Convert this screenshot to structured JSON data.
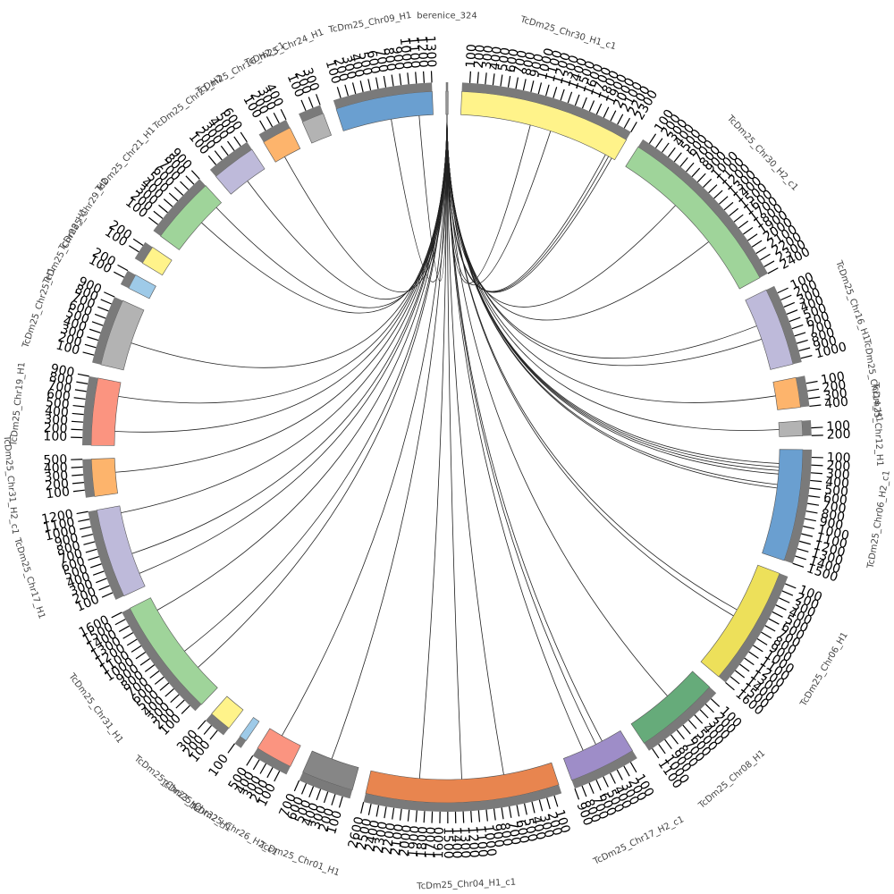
{
  "chart_data": {
    "type": "chord",
    "segments": [
      {
        "name": "berenice_324",
        "color": "#999999",
        "length": 30,
        "ticks": []
      },
      {
        "name": "TcDm25_Chr30_H1_c1",
        "color": "#fff38a",
        "length": 2300,
        "ticks": [
          100,
          200,
          300,
          400,
          500,
          600,
          700,
          800,
          900,
          1000,
          1100,
          1200,
          1300,
          1400,
          1500,
          1600,
          1700,
          1800,
          1900,
          2000,
          2100,
          2200,
          2300
        ]
      },
      {
        "name": "TcDm25_Chr30_H2_c1",
        "color": "#9fd49a",
        "length": 2400,
        "ticks": [
          100,
          200,
          300,
          400,
          500,
          600,
          700,
          800,
          900,
          1000,
          1100,
          1200,
          1300,
          1400,
          1500,
          1600,
          1700,
          1800,
          1900,
          2000,
          2100,
          2200,
          2300,
          2400
        ]
      },
      {
        "name": "TcDm25_Chr16_H1",
        "color": "#bebada",
        "length": 1050,
        "ticks": [
          100,
          200,
          300,
          400,
          500,
          600,
          700,
          800,
          900,
          1000
        ]
      },
      {
        "name": "TcDm25_Chr14_H1",
        "color": "#fdb46c",
        "length": 400,
        "ticks": [
          100,
          200,
          300,
          400
        ]
      },
      {
        "name": "TcDm25_Chr12_H1",
        "color": "#b3b3b3",
        "length": 200,
        "ticks": [
          100,
          200
        ]
      },
      {
        "name": "TcDm25_Chr06_H2_c1",
        "color": "#6a9fd0",
        "length": 1500,
        "ticks": [
          100,
          200,
          300,
          400,
          500,
          600,
          700,
          800,
          900,
          1000,
          1100,
          1200,
          1300,
          1400,
          1500
        ]
      },
      {
        "name": "TcDm25_Chr06_H1",
        "color": "#ede05a",
        "length": 1600,
        "ticks": [
          100,
          200,
          300,
          400,
          500,
          600,
          700,
          800,
          900,
          1000,
          1100,
          1200,
          1300,
          1400,
          1500,
          1600
        ]
      },
      {
        "name": "TcDm25_Chr08_H1",
        "color": "#66ab7a",
        "length": 1150,
        "ticks": [
          100,
          200,
          300,
          400,
          500,
          600,
          700,
          800,
          900,
          1000,
          1100
        ]
      },
      {
        "name": "TcDm25_Chr17_H2_c1",
        "color": "#9e8dc8",
        "length": 900,
        "ticks": [
          100,
          200,
          300,
          400,
          500,
          600,
          700,
          800,
          900
        ]
      },
      {
        "name": "TcDm25_Chr04_H1_c1",
        "color": "#e8854f",
        "length": 2600,
        "ticks": [
          100,
          200,
          300,
          400,
          500,
          600,
          700,
          800,
          900,
          1000,
          1100,
          1200,
          1300,
          1400,
          1500,
          1600,
          1700,
          1800,
          1900,
          2000,
          2100,
          2200,
          2300,
          2400,
          2500,
          2600
        ]
      },
      {
        "name": "TcDm25_Chr01_H1",
        "color": "#868686",
        "length": 700,
        "ticks": [
          100,
          200,
          300,
          400,
          500,
          600,
          700
        ]
      },
      {
        "name": "TcDm25_Chr26_H2_c1",
        "color": "#fb9480",
        "length": 500,
        "ticks": [
          100,
          200,
          300,
          400,
          500
        ]
      },
      {
        "name": "TcDm25_Chr32_H1",
        "color": "#9ecae8",
        "length": 100,
        "ticks": [
          100
        ]
      },
      {
        "name": "TcDm25_Chr23_H2",
        "color": "#fff38a",
        "length": 300,
        "ticks": [
          100,
          200,
          300
        ]
      },
      {
        "name": "TcDm25_Chr31_H1",
        "color": "#9fd49a",
        "length": 1600,
        "ticks": [
          100,
          200,
          300,
          400,
          500,
          600,
          700,
          800,
          900,
          1000,
          1100,
          1200,
          1300,
          1400,
          1500,
          1600
        ]
      },
      {
        "name": "TcDm25_Chr17_H1",
        "color": "#bebada",
        "length": 1200,
        "ticks": [
          100,
          200,
          300,
          400,
          500,
          600,
          700,
          800,
          900,
          1000,
          1100,
          1200
        ]
      },
      {
        "name": "TcDm25_Chr31_H2_c1",
        "color": "#fdb46c",
        "length": 500,
        "ticks": [
          100,
          200,
          300,
          400,
          500
        ]
      },
      {
        "name": "TcDm25_Chr19_H1",
        "color": "#fb9480",
        "length": 900,
        "ticks": [
          100,
          200,
          300,
          400,
          500,
          600,
          700,
          800,
          900
        ]
      },
      {
        "name": "TcDm25_Chr25_H1",
        "color": "#b3b3b3",
        "length": 900,
        "ticks": [
          100,
          200,
          300,
          400,
          500,
          600,
          700,
          800,
          900
        ]
      },
      {
        "name": "TcDm25_Chr28_H1",
        "color": "#9ecae8",
        "length": 200,
        "ticks": [
          100,
          200
        ]
      },
      {
        "name": "TcDm25_Chr29_H2",
        "color": "#fff38a",
        "length": 250,
        "ticks": [
          100,
          200
        ]
      },
      {
        "name": "TcDm25_Chr21_H1",
        "color": "#9fd49a",
        "length": 900,
        "ticks": [
          100,
          200,
          300,
          400,
          500,
          600,
          700,
          800,
          900
        ]
      },
      {
        "name": "TcDm25_Chr21_H2",
        "color": "#bebada",
        "length": 600,
        "ticks": [
          100,
          200,
          300,
          400,
          500,
          600
        ]
      },
      {
        "name": "TcDm25_Chr16_H2_c1",
        "color": "#fdb46c",
        "length": 400,
        "ticks": [
          100,
          200,
          300,
          400
        ]
      },
      {
        "name": "TcDm25_Chr24_H1",
        "color": "#b3b3b3",
        "length": 300,
        "ticks": [
          100,
          200,
          300
        ]
      },
      {
        "name": "TcDm25_Chr09_H1",
        "color": "#6a9fd0",
        "length": 1300,
        "ticks": [
          100,
          200,
          300,
          400,
          500,
          600,
          700,
          800,
          900,
          1000,
          1100,
          1200,
          1300
        ]
      }
    ],
    "links": [
      {
        "target": 1,
        "position": 1000
      },
      {
        "target": 1,
        "position": 1300
      },
      {
        "target": 1,
        "position": 2150
      },
      {
        "target": 1,
        "position": 2200
      },
      {
        "target": 1,
        "position": 2250
      },
      {
        "target": 2,
        "position": 900
      },
      {
        "target": 2,
        "position": 1600
      },
      {
        "target": 3,
        "position": 400
      },
      {
        "target": 3,
        "position": 600
      },
      {
        "target": 4,
        "position": 200
      },
      {
        "target": 5,
        "position": 100
      },
      {
        "target": 6,
        "position": 200
      },
      {
        "target": 6,
        "position": 250
      },
      {
        "target": 6,
        "position": 300
      },
      {
        "target": 6,
        "position": 350
      },
      {
        "target": 6,
        "position": 500
      },
      {
        "target": 6,
        "position": 550
      },
      {
        "target": 7,
        "position": 700
      },
      {
        "target": 7,
        "position": 800
      },
      {
        "target": 8,
        "position": 500
      },
      {
        "target": 9,
        "position": 300
      },
      {
        "target": 9,
        "position": 400
      },
      {
        "target": 9,
        "position": 600
      },
      {
        "target": 10,
        "position": 700
      },
      {
        "target": 10,
        "position": 1300
      },
      {
        "target": 10,
        "position": 1900
      },
      {
        "target": 11,
        "position": 400
      },
      {
        "target": 12,
        "position": 300
      },
      {
        "target": 15,
        "position": 400
      },
      {
        "target": 15,
        "position": 700
      },
      {
        "target": 15,
        "position": 1400
      },
      {
        "target": 16,
        "position": 200
      },
      {
        "target": 16,
        "position": 500
      },
      {
        "target": 16,
        "position": 1100
      },
      {
        "target": 17,
        "position": 300
      },
      {
        "target": 18,
        "position": 200
      },
      {
        "target": 18,
        "position": 700
      },
      {
        "target": 19,
        "position": 400
      },
      {
        "target": 22,
        "position": 500
      },
      {
        "target": 22,
        "position": 800
      },
      {
        "target": 23,
        "position": 300
      },
      {
        "target": 24,
        "position": 150
      },
      {
        "target": 26,
        "position": 700
      },
      {
        "target": 26,
        "position": 1100
      }
    ],
    "source": 0
  }
}
